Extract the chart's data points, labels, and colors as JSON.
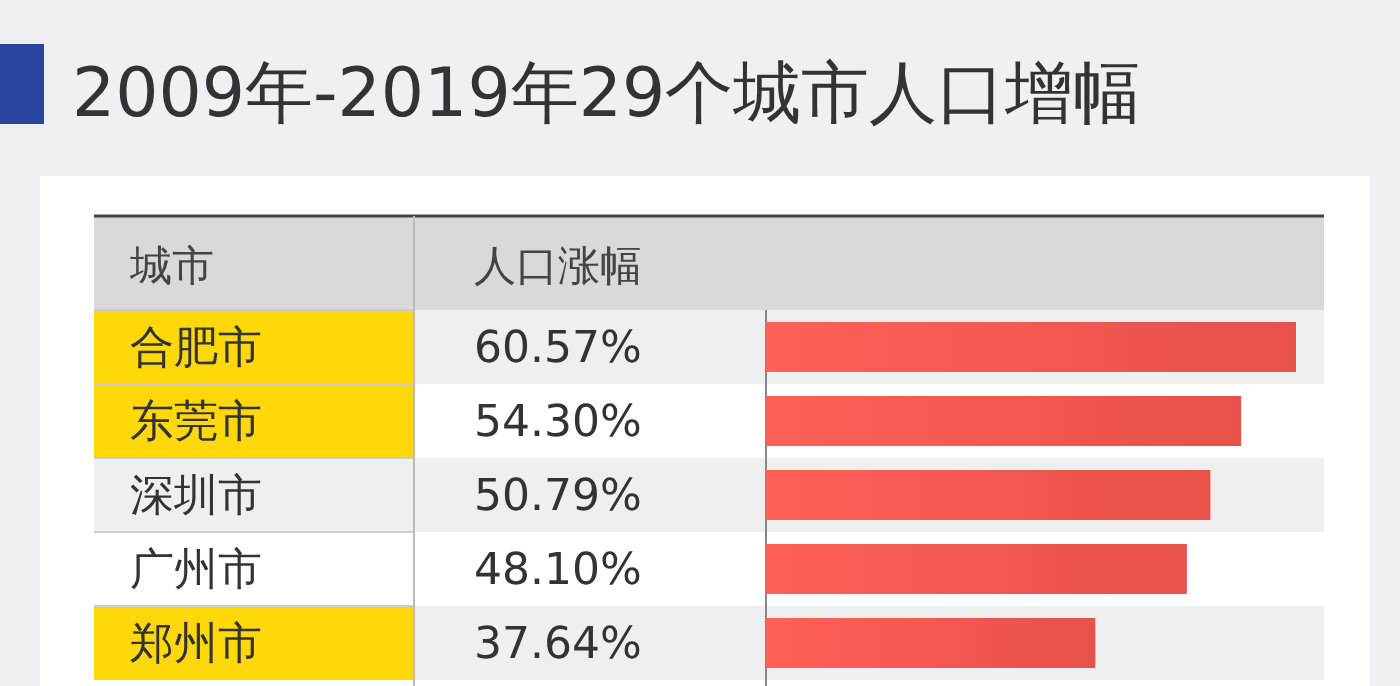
{
  "chart_data": {
    "type": "bar",
    "orientation": "horizontal",
    "title": "2009年-2019年29个城市人口增幅",
    "ylabel": "城市",
    "xlabel": "人口涨幅",
    "categories": [
      "合肥市",
      "东莞市",
      "深圳市",
      "广州市",
      "郑州市"
    ],
    "values": [
      60.57,
      54.3,
      50.79,
      48.1,
      37.64
    ],
    "value_labels": [
      "60.57%",
      "54.30%",
      "50.79%",
      "48.10%",
      "37.64%"
    ],
    "color": "#e8504a"
  }
}
